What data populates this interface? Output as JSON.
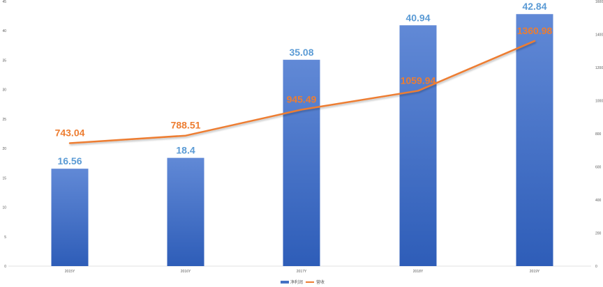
{
  "chart_data": {
    "type": "bar",
    "categories": [
      "2015Y",
      "2016Y",
      "2017Y",
      "2018Y",
      "2019Y"
    ],
    "series": [
      {
        "name": "净利润",
        "type": "bar",
        "axis": "left",
        "values": [
          16.56,
          18.4,
          35.08,
          40.94,
          42.84
        ],
        "color": "#4472C4",
        "label_color": "#5B9BD5"
      },
      {
        "name": "营收",
        "type": "line",
        "axis": "right",
        "values": [
          743.04,
          788.51,
          945.49,
          1059.94,
          1360.98
        ],
        "color": "#ED7D31",
        "label_color": "#ED7D31"
      }
    ],
    "data_labels": {
      "bars": [
        "16.56",
        "18.4",
        "35.08",
        "40.94",
        "42.84"
      ],
      "line": [
        "743.04",
        "788.51",
        "945.49",
        "1059.94",
        "1360.98"
      ]
    },
    "y_left": {
      "min": 0,
      "max": 45,
      "ticks": [
        "0",
        "5",
        "10",
        "15",
        "20",
        "25",
        "30",
        "35",
        "40",
        "45"
      ]
    },
    "y_right": {
      "min": 0,
      "max": 1600,
      "ticks": [
        "0",
        "200",
        "400",
        "600",
        "800",
        "1000",
        "1200",
        "1400",
        "1600"
      ]
    },
    "grid": false,
    "legend_position": "bottom",
    "title": "",
    "xlabel": "",
    "ylabel": ""
  }
}
